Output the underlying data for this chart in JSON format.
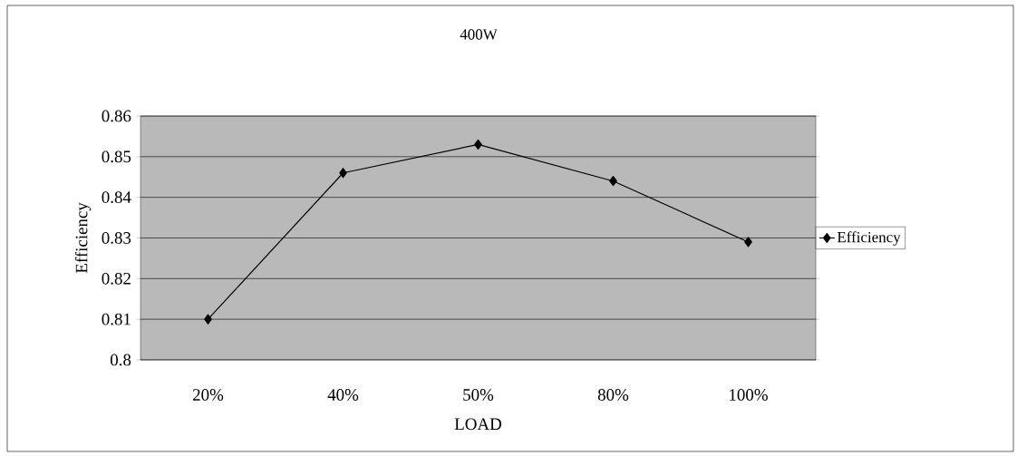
{
  "chart_data": {
    "type": "line",
    "title": "400W",
    "xlabel": "LOAD",
    "ylabel": "Efficiency",
    "categories": [
      "20%",
      "40%",
      "50%",
      "80%",
      "100%"
    ],
    "series": [
      {
        "name": "Efficiency",
        "color": "#000000",
        "values": [
          0.81,
          0.846,
          0.853,
          0.844,
          0.829
        ]
      }
    ],
    "ylim": [
      0.8,
      0.86
    ],
    "yticks": [
      0.8,
      0.81,
      0.82,
      0.83,
      0.84,
      0.85,
      0.86
    ],
    "grid": "y",
    "legend": "right",
    "marker": "diamond",
    "line_style": "solid"
  }
}
